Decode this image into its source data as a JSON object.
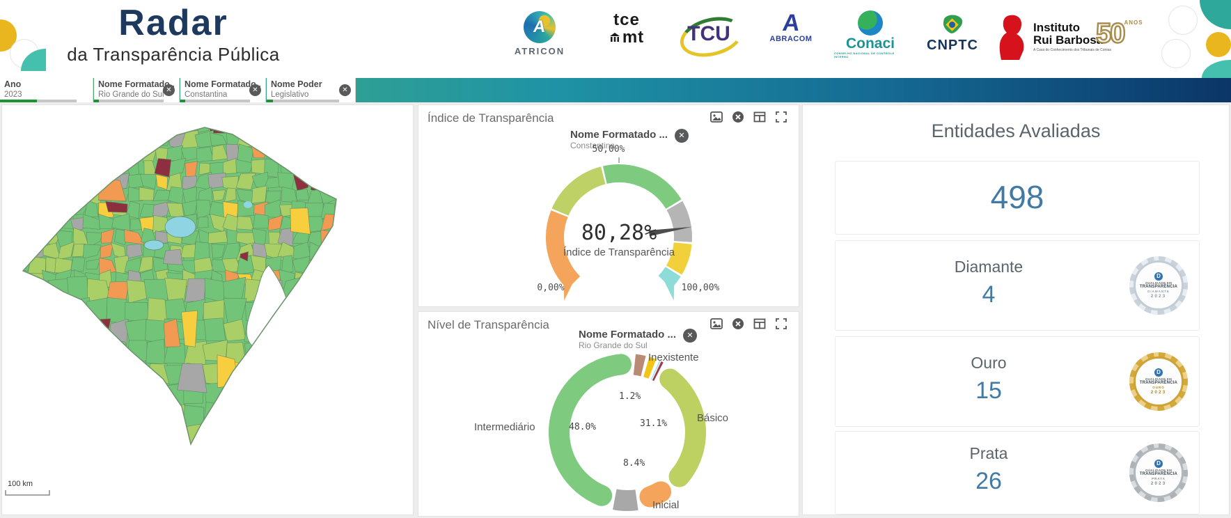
{
  "colors": {
    "brand_navy": "#1d3a5e",
    "value_blue": "#417aa4",
    "filter_selected_green": "#1d9334",
    "gradient_start": "#5fae5c",
    "gradient_end": "#0b3566",
    "map_base_green": "#72c578",
    "map_alt_green": "#aacf66",
    "map_orange": "#f29a52",
    "map_yellow": "#f7ce3e",
    "map_gray": "#a7a7a7",
    "map_darkred": "#8e2f40",
    "map_water": "#8fd4e2"
  },
  "header": {
    "brand_title": "Radar",
    "brand_subtitle": "da Transparência Pública",
    "logos": [
      {
        "label": "ATRICON"
      },
      {
        "label_top": "tce",
        "label_bottom": "mt"
      },
      {
        "label": "TCU"
      },
      {
        "letter": "A",
        "label": "ABRACOM"
      },
      {
        "label": "Conaci",
        "caption": "CONSELHO NACIONAL DE CONTROLE INTERNO"
      },
      {
        "label": "CNPTC"
      },
      {
        "line1": "Instituto",
        "line2": "Rui Barbosa",
        "caption": "A Casa do Conhecimento dos Tribunais de Contas"
      },
      {
        "number": "50",
        "caption": "ANOS"
      }
    ]
  },
  "filters": {
    "items": [
      {
        "label": "Ano",
        "value": "2023",
        "has_close": false
      },
      {
        "label": "Nome Formatado ...",
        "value": "Rio Grande do Sul",
        "has_close": true
      },
      {
        "label": "Nome Formatado ...",
        "value": "Constantina",
        "has_close": true
      },
      {
        "label": "Nome Poder",
        "value": "Legislativo",
        "has_close": true
      }
    ]
  },
  "map_panel": {
    "scale_label": "100 km"
  },
  "gauge_panel": {
    "title": "Índice de Transparência",
    "chip_label": "Nome Formatado ...",
    "chip_value": "Constantina",
    "center_value": "80,28%",
    "center_caption": "Índice de Transparência",
    "tick_low": "0,00%",
    "tick_mid": "50,00%",
    "tick_high": "100,00%"
  },
  "donut_panel": {
    "title": "Nível de Transparência",
    "chip_label": "Nome Formatado ...",
    "chip_value": "Rio Grande do Sul"
  },
  "right_panel": {
    "title": "Entidades Avaliadas",
    "total": "498",
    "rows": [
      {
        "label": "Diamante",
        "value": "4",
        "badge_style": "diamond",
        "badge_line1": "QUALIDADE EM",
        "badge_line2": "TRANSPARÊNCIA",
        "badge_level": "DIAMANTE",
        "badge_year": "2023"
      },
      {
        "label": "Ouro",
        "value": "15",
        "badge_style": "gold",
        "badge_line1": "QUALIDADE EM",
        "badge_line2": "TRANSPARÊNCIA",
        "badge_level": "OURO",
        "badge_year": "2023"
      },
      {
        "label": "Prata",
        "value": "26",
        "badge_style": "silver",
        "badge_line1": "QUALIDADE EM",
        "badge_line2": "TRANSPARÊNCIA",
        "badge_level": "PRATA",
        "badge_year": "2023"
      }
    ]
  },
  "chart_data": [
    {
      "type": "gauge",
      "title": "Índice de Transparência",
      "value": 80.28,
      "value_label": "80,28%",
      "min": 0,
      "max": 100,
      "tick_labels": [
        "0,00%",
        "50,00%",
        "100,00%"
      ],
      "segments": [
        {
          "from": 0,
          "to": 25,
          "color": "#f5a55b"
        },
        {
          "from": 25,
          "to": 45,
          "color": "#bdd166"
        },
        {
          "from": 45,
          "to": 72,
          "color": "#7ecb80"
        },
        {
          "from": 72,
          "to": 85,
          "color": "#b5b5b5"
        },
        {
          "from": 85,
          "to": 95,
          "color": "#f2d03c"
        },
        {
          "from": 95,
          "to": 100,
          "color": "#8edcd8"
        }
      ]
    },
    {
      "type": "pie",
      "title": "Nível de Transparência",
      "slices": [
        {
          "label": "Intermediário",
          "value": 48.0,
          "data_label": "48.0%",
          "color": "#7ecb80"
        },
        {
          "label": "",
          "value": 2.8,
          "data_label": "",
          "color": "#b98a74"
        },
        {
          "label": "",
          "value": 2.2,
          "data_label": "",
          "color": "#f2c414"
        },
        {
          "label": "",
          "value": 0.4,
          "data_label": "",
          "color": "#8edcd8"
        },
        {
          "label": "Inexistente",
          "value": 1.2,
          "data_label": "1.2%",
          "color": "#a03c49"
        },
        {
          "label": "Básico",
          "value": 31.1,
          "data_label": "31.1%",
          "color": "#bcd161"
        },
        {
          "label": "Inicial",
          "value": 8.4,
          "data_label": "8.4%",
          "color": "#f5a55b"
        },
        {
          "label": "",
          "value": 5.9,
          "data_label": "",
          "color": "#a8a8a8"
        }
      ]
    }
  ]
}
